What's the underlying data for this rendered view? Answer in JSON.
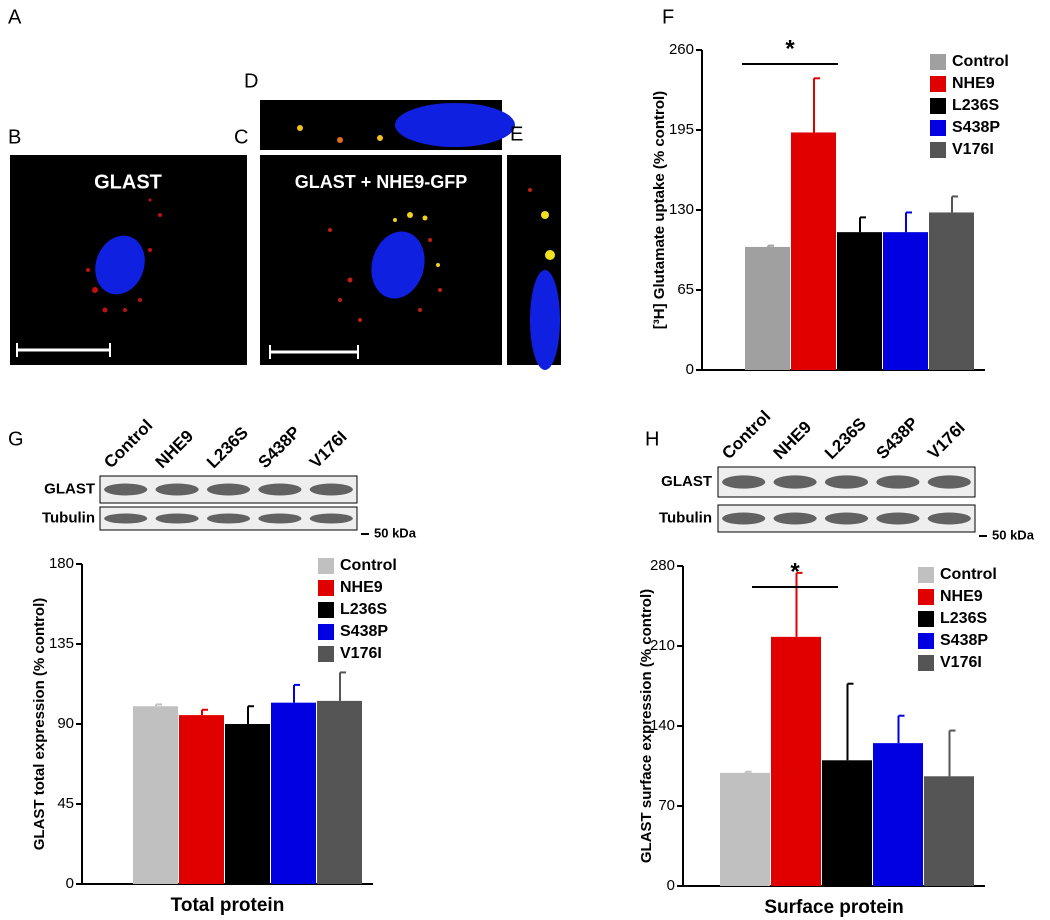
{
  "panel_labels": [
    "A",
    "B",
    "C",
    "D",
    "E",
    "F",
    "G",
    "H"
  ],
  "micrographs": {
    "b_label": "GLAST",
    "c_label": "GLAST + NHE9-GFP"
  },
  "blots": [
    {
      "lanes": [
        "Control",
        "NHE9",
        "L236S",
        "S438P",
        "V176I"
      ],
      "rows": [
        "GLAST",
        "Tubulin"
      ],
      "marker": "50 kDa"
    },
    {
      "lanes": [
        "Control",
        "NHE9",
        "L236S",
        "S438P",
        "V176I"
      ],
      "rows": [
        "GLAST",
        "Tubulin"
      ],
      "marker": "50 kDa"
    }
  ],
  "chart_data": [
    {
      "type": "bar",
      "ylabel": "[³H] Glutamate uptake (% control)",
      "categories": [
        "Control",
        "NHE9",
        "L236S",
        "S438P",
        "V176I"
      ],
      "values": [
        100,
        193,
        112,
        112,
        128
      ],
      "errors": [
        1,
        44,
        12,
        16,
        13
      ],
      "colors": [
        "#a0a0a0",
        "#e00000",
        "#000000",
        "#0000e0",
        "#555555"
      ],
      "ylim": [
        0,
        260
      ],
      "yticks": [
        0,
        65,
        130,
        195,
        260
      ],
      "annotations": [
        "*"
      ],
      "legend": "upper right"
    },
    {
      "type": "bar",
      "ylabel": "GLAST total expression (% control)",
      "xlabel": "Total protein",
      "categories": [
        "Control",
        "NHE9",
        "L236S",
        "S438P",
        "V176I"
      ],
      "values": [
        100,
        95,
        90,
        102,
        103
      ],
      "errors": [
        1,
        3,
        10,
        10,
        16
      ],
      "colors": [
        "#c0c0c0",
        "#e00000",
        "#000000",
        "#0000e0",
        "#555555"
      ],
      "ylim": [
        0,
        180
      ],
      "yticks": [
        0,
        45,
        90,
        135,
        180
      ],
      "legend": "upper right"
    },
    {
      "type": "bar",
      "ylabel": "GLAST surface expression (% control)",
      "xlabel": "Surface protein",
      "categories": [
        "Control",
        "NHE9",
        "L236S",
        "S438P",
        "V176I"
      ],
      "values": [
        99,
        218,
        110,
        125,
        96
      ],
      "errors": [
        1,
        56,
        67,
        24,
        40
      ],
      "colors": [
        "#c0c0c0",
        "#e00000",
        "#000000",
        "#0000e0",
        "#555555"
      ],
      "ylim": [
        0,
        280
      ],
      "yticks": [
        0,
        70,
        140,
        210,
        280
      ],
      "annotations": [
        "*"
      ],
      "legend": "upper right"
    }
  ]
}
